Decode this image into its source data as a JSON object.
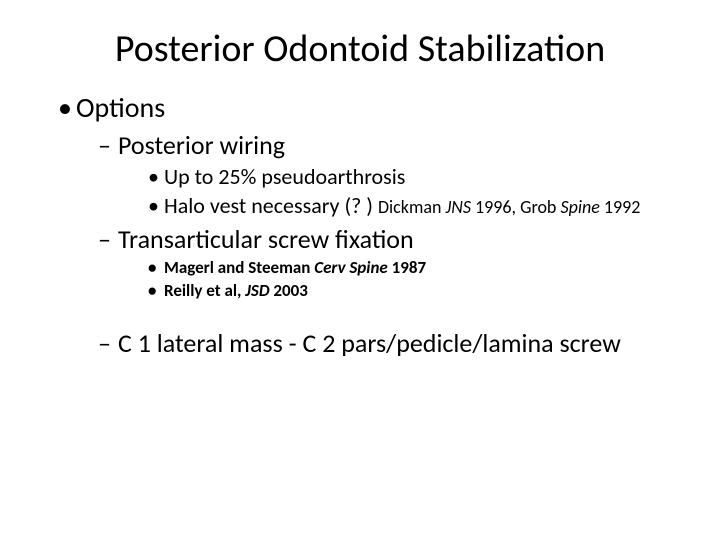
{
  "title": "Posterior Odontoid Stabilization",
  "lvl1": {
    "bullet": "•",
    "text": "Options"
  },
  "sec1": {
    "header": {
      "bullet": "–",
      "text": "Posterior wiring"
    },
    "p1": {
      "bullet": "•",
      "text": "Up to 25% pseudoarthrosis"
    },
    "p2": {
      "bullet": "•",
      "text": "Halo vest necessary (? )",
      "ref_a1": "Dickman ",
      "ref_j1": "JNS",
      "ref_y1": " 1996,",
      "ref_a2": " Grob ",
      "ref_j2": "Spine",
      "ref_y2": " 1992"
    }
  },
  "sec2": {
    "header": {
      "bullet": "–",
      "text": "Transarticular screw fixation"
    },
    "p1": {
      "bullet": "•",
      "a": "Magerl and Steeman ",
      "j": "Cerv Spine",
      "y": " 1987"
    },
    "p2": {
      "bullet": "•",
      "a": "Reilly et al, ",
      "j": "JSD",
      "y": " 2003"
    }
  },
  "sec3": {
    "header": {
      "bullet": "–",
      "text": "C 1 lateral mass - C 2 pars/pedicle/lamina screw"
    }
  },
  "style": {
    "text_color": "#000000",
    "background_color": "#ffffff",
    "title_fontsize": 38,
    "lvl1_fontsize": 28,
    "lvl2_fontsize": 26,
    "lvl3_fontsize": 22,
    "lvl3_small_fontsize": 17,
    "ref_fontsize": 18,
    "font_family": "Calibri"
  }
}
